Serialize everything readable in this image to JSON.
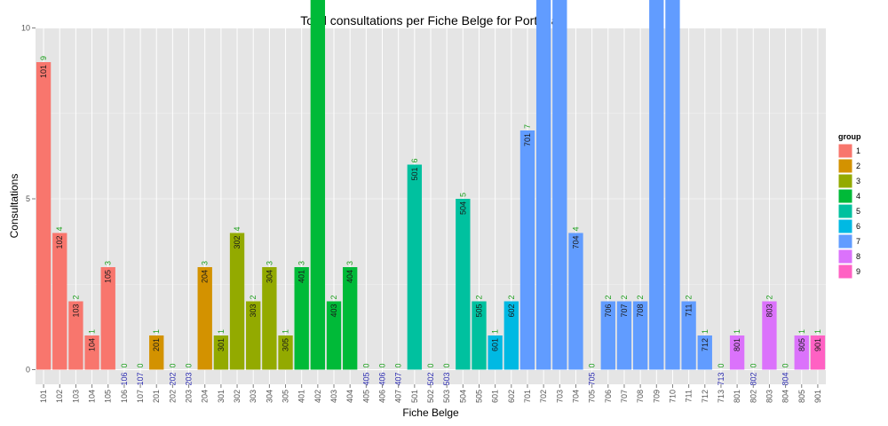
{
  "chart_data": {
    "type": "bar",
    "title": "Total consultations per Fiche Belge for Portugal",
    "xlabel": "Fiche Belge",
    "ylabel": "Consultations",
    "ylim": [
      -0.6,
      20
    ],
    "yticks": [
      0,
      5,
      10,
      15
    ],
    "grid": true,
    "legend": {
      "title": "group",
      "placement": "right",
      "entries": [
        "1",
        "2",
        "3",
        "4",
        "5",
        "6",
        "7",
        "8",
        "9"
      ]
    },
    "group_colors": {
      "1": "#F8766D",
      "2": "#D39200",
      "3": "#93AA00",
      "4": "#00BA38",
      "5": "#00C19F",
      "6": "#00B9E3",
      "7": "#619CFF",
      "8": "#DB72FB",
      "9": "#FF61C3"
    },
    "categories": [
      "101",
      "102",
      "103",
      "104",
      "105",
      "106",
      "107",
      "201",
      "202",
      "203",
      "204",
      "301",
      "302",
      "303",
      "304",
      "305",
      "401",
      "402",
      "403",
      "404",
      "405",
      "406",
      "407",
      "501",
      "502",
      "503",
      "504",
      "505",
      "601",
      "602",
      "701",
      "702",
      "703",
      "704",
      "705",
      "706",
      "707",
      "708",
      "709",
      "710",
      "711",
      "712",
      "713",
      "801",
      "802",
      "803",
      "804",
      "805",
      "901"
    ],
    "values": [
      9,
      4,
      2,
      1,
      3,
      0,
      0,
      1,
      0,
      0,
      3,
      1,
      4,
      2,
      3,
      1,
      3,
      12,
      2,
      3,
      0,
      0,
      0,
      6,
      0,
      0,
      5,
      2,
      1,
      2,
      7,
      19,
      15,
      4,
      0,
      2,
      2,
      2,
      12,
      17,
      2,
      1,
      0,
      1,
      0,
      2,
      0,
      1,
      1
    ],
    "groups": [
      "1",
      "1",
      "1",
      "1",
      "1",
      "1",
      "1",
      "2",
      "2",
      "2",
      "2",
      "3",
      "3",
      "3",
      "3",
      "3",
      "4",
      "4",
      "4",
      "4",
      "4",
      "4",
      "4",
      "5",
      "5",
      "5",
      "5",
      "5",
      "6",
      "6",
      "7",
      "7",
      "7",
      "7",
      "7",
      "7",
      "7",
      "7",
      "7",
      "7",
      "7",
      "7",
      "7",
      "8",
      "8",
      "8",
      "8",
      "8",
      "9"
    ]
  }
}
